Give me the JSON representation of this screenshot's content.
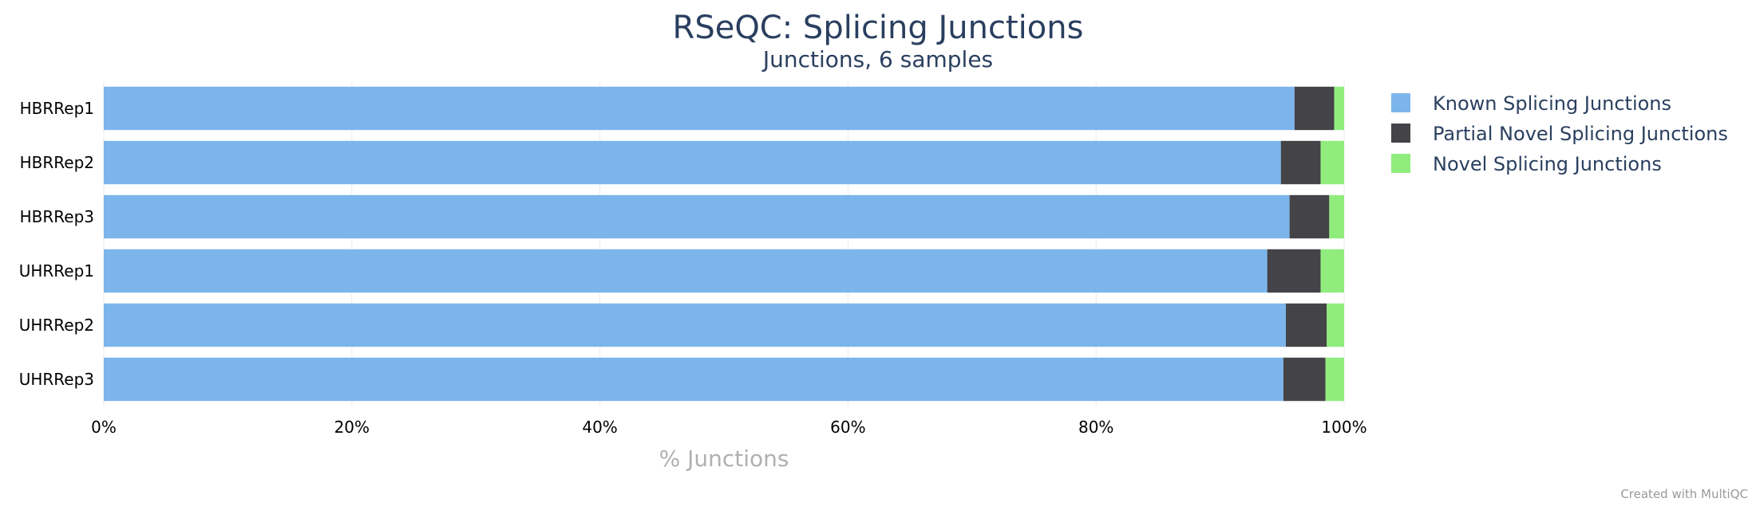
{
  "chart_data": {
    "type": "bar",
    "orientation": "horizontal",
    "stacked": true,
    "normalized_percent": true,
    "title": "RSeQC: Splicing Junctions",
    "subtitle": "Junctions, 6 samples",
    "xlabel": "% Junctions",
    "ylabel": "",
    "xlim": [
      0,
      100
    ],
    "x_ticks": [
      "0%",
      "20%",
      "40%",
      "60%",
      "80%",
      "100%"
    ],
    "grid": true,
    "legend_position": "right",
    "categories": [
      "HBRRep1",
      "HBRRep2",
      "HBRRep3",
      "UHRRep1",
      "UHRRep2",
      "UHRRep3"
    ],
    "series": [
      {
        "name": "Known Splicing Junctions",
        "color": "#7cb5ec",
        "values": [
          96.0,
          94.9,
          95.6,
          93.8,
          95.3,
          95.1
        ]
      },
      {
        "name": "Partial Novel Splicing Junctions",
        "color": "#434348",
        "values": [
          3.2,
          3.2,
          3.2,
          4.3,
          3.3,
          3.4
        ]
      },
      {
        "name": "Novel Splicing Junctions",
        "color": "#90ed7d",
        "values": [
          0.8,
          1.9,
          1.2,
          1.9,
          1.4,
          1.5
        ]
      }
    ]
  },
  "credit": "Created with MultiQC"
}
